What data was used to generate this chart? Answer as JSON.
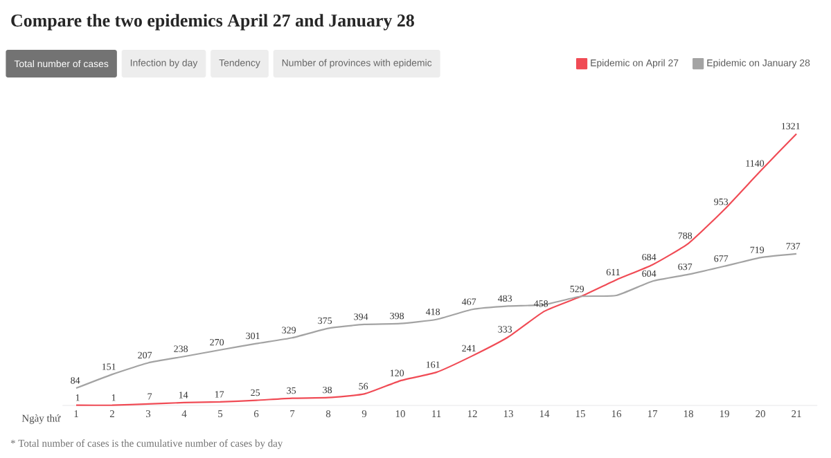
{
  "chart_data": {
    "type": "line",
    "title": "Compare the two epidemics April 27 and January 28",
    "xlabel": "Ngày thứ",
    "categories": [
      "1",
      "2",
      "3",
      "4",
      "5",
      "6",
      "7",
      "8",
      "9",
      "10",
      "11",
      "12",
      "13",
      "14",
      "15",
      "16",
      "17",
      "18",
      "19",
      "20",
      "21"
    ],
    "series": [
      {
        "name": "Epidemic on April 27",
        "color": "#f04b55",
        "values": [
          1,
          1,
          7,
          14,
          17,
          25,
          35,
          38,
          56,
          120,
          161,
          241,
          333,
          458,
          529,
          611,
          684,
          788,
          953,
          1140,
          1321
        ]
      },
      {
        "name": "Epidemic on January 28",
        "color": "#a3a3a3",
        "values": [
          84,
          151,
          207,
          238,
          270,
          301,
          329,
          375,
          394,
          398,
          418,
          467,
          483,
          490,
          530,
          535,
          604,
          637,
          677,
          719,
          737
        ],
        "value_labels": [
          "84",
          "151",
          "207",
          "238",
          "270",
          "301",
          "329",
          "375",
          "394",
          "398",
          "418",
          "467",
          "483",
          null,
          null,
          null,
          "604",
          "637",
          "677",
          "719",
          "737"
        ]
      }
    ],
    "data_labels": true,
    "legend": "top right",
    "marker": "none",
    "line_style": "solid",
    "grid": false,
    "annotations": [
      "Total number of cases",
      "Infection by day",
      "Tendency",
      "Number of provinces with epidemic",
      "* Total number of cases is the cumulative number of cases by day"
    ]
  }
}
